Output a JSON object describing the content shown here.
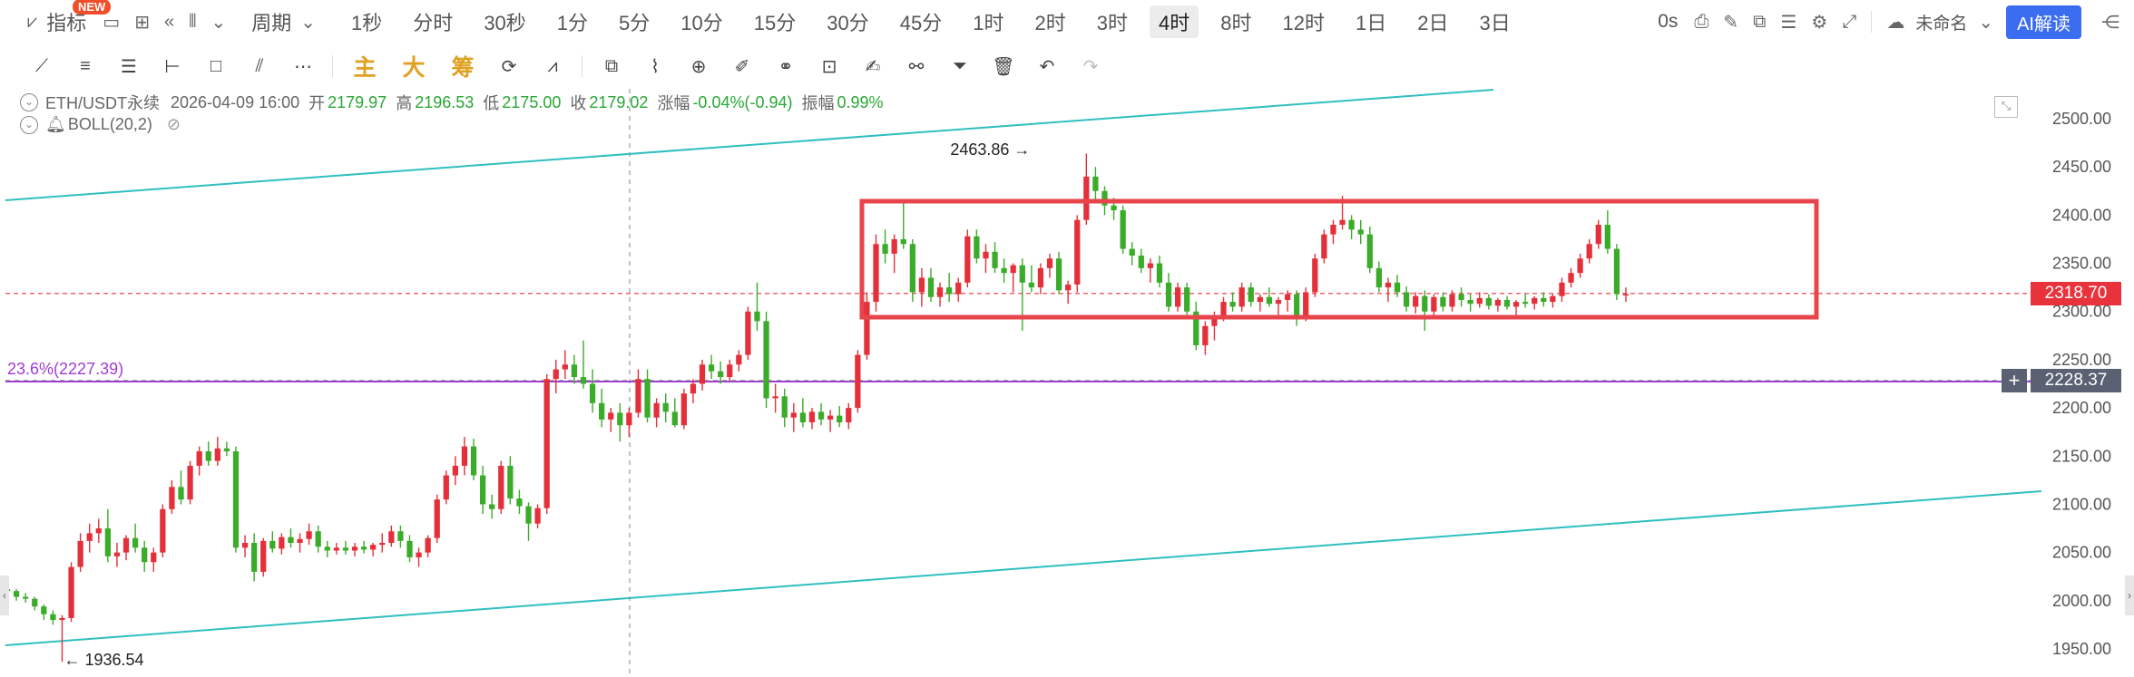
{
  "toolbar": {
    "indicator_label": "指标",
    "new_badge": "NEW",
    "period_label": "周期",
    "timeframes": [
      "1秒",
      "分时",
      "30秒",
      "1分",
      "5分",
      "10分",
      "15分",
      "30分",
      "45分",
      "1时",
      "2时",
      "3时",
      "4时",
      "8时",
      "12时",
      "1日",
      "2日",
      "3日"
    ],
    "active_timeframe": "4时",
    "countdown": "0s",
    "unnamed_label": "未命名",
    "ai_label": "AI解读"
  },
  "draw_toolbar": {
    "main_label": "主",
    "big_label": "大",
    "chip_label": "筹"
  },
  "legend": {
    "symbol": "ETH/USDT永续",
    "datetime": "2026-04-09 16:00",
    "open_label": "开",
    "open": "2179.97",
    "high_label": "高",
    "high": "2196.53",
    "low_label": "低",
    "low": "2175.00",
    "close_label": "收",
    "close": "2179.02",
    "change_label": "涨幅",
    "change": "-0.04%(-0.94)",
    "amp_label": "振幅",
    "amp": "0.99%",
    "indicator": "BOLL(20,2)"
  },
  "chart_data": {
    "type": "candlestick",
    "y_axis_ticks": [
      "2500.00",
      "2450.00",
      "2400.00",
      "2350.00",
      "2300.00",
      "2250.00",
      "2200.00",
      "2150.00",
      "2100.00",
      "2050.00",
      "2000.00",
      "1950.00"
    ],
    "ylim": [
      1930,
      2520
    ],
    "current_price": "2318.70",
    "crosshair_price": "2228.37",
    "fib_level": "23.6%(2227.39)",
    "high_annotation": "2463.86",
    "low_annotation": "1936.54",
    "candles": [
      [
        2012,
        2014,
        2005,
        2010
      ],
      [
        2010,
        2012,
        2000,
        2004
      ],
      [
        2004,
        2008,
        1998,
        2002
      ],
      [
        2002,
        2004,
        1990,
        1994
      ],
      [
        1994,
        1996,
        1980,
        1986
      ],
      [
        1986,
        1990,
        1975,
        1980
      ],
      [
        1980,
        1985,
        1936.54,
        1982
      ],
      [
        1982,
        2040,
        1978,
        2035
      ],
      [
        2035,
        2070,
        2030,
        2062
      ],
      [
        2062,
        2080,
        2050,
        2070
      ],
      [
        2070,
        2085,
        2060,
        2075
      ],
      [
        2075,
        2095,
        2040,
        2046
      ],
      [
        2046,
        2060,
        2035,
        2050
      ],
      [
        2050,
        2068,
        2042,
        2065
      ],
      [
        2065,
        2080,
        2050,
        2055
      ],
      [
        2055,
        2062,
        2030,
        2040
      ],
      [
        2040,
        2055,
        2030,
        2050
      ],
      [
        2050,
        2100,
        2045,
        2095
      ],
      [
        2095,
        2125,
        2090,
        2118
      ],
      [
        2118,
        2135,
        2100,
        2105
      ],
      [
        2105,
        2145,
        2100,
        2140
      ],
      [
        2140,
        2160,
        2130,
        2155
      ],
      [
        2155,
        2165,
        2140,
        2145
      ],
      [
        2145,
        2170,
        2140,
        2158
      ],
      [
        2158,
        2165,
        2150,
        2155
      ],
      [
        2155,
        2160,
        2050,
        2055
      ],
      [
        2055,
        2068,
        2045,
        2060
      ],
      [
        2060,
        2070,
        2020,
        2030
      ],
      [
        2030,
        2065,
        2025,
        2062
      ],
      [
        2062,
        2072,
        2050,
        2054
      ],
      [
        2054,
        2070,
        2048,
        2066
      ],
      [
        2066,
        2075,
        2055,
        2060
      ],
      [
        2060,
        2070,
        2050,
        2064
      ],
      [
        2064,
        2080,
        2058,
        2072
      ],
      [
        2072,
        2078,
        2050,
        2056
      ],
      [
        2056,
        2062,
        2045,
        2052
      ],
      [
        2052,
        2060,
        2048,
        2055
      ],
      [
        2055,
        2062,
        2048,
        2052
      ],
      [
        2052,
        2060,
        2046,
        2056
      ],
      [
        2056,
        2062,
        2049,
        2053
      ],
      [
        2053,
        2060,
        2046,
        2058
      ],
      [
        2058,
        2070,
        2050,
        2060
      ],
      [
        2060,
        2078,
        2056,
        2072
      ],
      [
        2072,
        2078,
        2055,
        2062
      ],
      [
        2062,
        2068,
        2040,
        2045
      ],
      [
        2045,
        2055,
        2035,
        2050
      ],
      [
        2050,
        2068,
        2045,
        2065
      ],
      [
        2065,
        2110,
        2060,
        2105
      ],
      [
        2105,
        2135,
        2100,
        2130
      ],
      [
        2130,
        2150,
        2120,
        2140
      ],
      [
        2140,
        2170,
        2130,
        2160
      ],
      [
        2160,
        2168,
        2125,
        2130
      ],
      [
        2130,
        2140,
        2090,
        2100
      ],
      [
        2100,
        2110,
        2085,
        2095
      ],
      [
        2095,
        2145,
        2090,
        2140
      ],
      [
        2140,
        2150,
        2100,
        2106
      ],
      [
        2106,
        2115,
        2090,
        2098
      ],
      [
        2098,
        2102,
        2062,
        2080
      ],
      [
        2080,
        2100,
        2075,
        2096
      ],
      [
        2096,
        2235,
        2090,
        2230
      ],
      [
        2230,
        2250,
        2215,
        2240
      ],
      [
        2240,
        2260,
        2230,
        2245
      ],
      [
        2245,
        2255,
        2225,
        2232
      ],
      [
        2232,
        2270,
        2220,
        2225
      ],
      [
        2225,
        2240,
        2195,
        2205
      ],
      [
        2205,
        2220,
        2180,
        2188
      ],
      [
        2188,
        2200,
        2175,
        2195
      ],
      [
        2195,
        2205,
        2165,
        2182
      ],
      [
        2182,
        2200,
        2170,
        2195
      ],
      [
        2195,
        2240,
        2190,
        2230
      ],
      [
        2230,
        2240,
        2185,
        2190
      ],
      [
        2190,
        2210,
        2180,
        2205
      ],
      [
        2205,
        2215,
        2185,
        2196
      ],
      [
        2196,
        2210,
        2180,
        2182
      ],
      [
        2182,
        2220,
        2178,
        2215
      ],
      [
        2215,
        2230,
        2205,
        2225
      ],
      [
        2225,
        2250,
        2218,
        2245
      ],
      [
        2245,
        2255,
        2230,
        2238
      ],
      [
        2238,
        2248,
        2225,
        2232
      ],
      [
        2232,
        2250,
        2228,
        2245
      ],
      [
        2245,
        2260,
        2238,
        2255
      ],
      [
        2255,
        2305,
        2250,
        2300
      ],
      [
        2300,
        2330,
        2280,
        2290
      ],
      [
        2290,
        2300,
        2200,
        2210
      ],
      [
        2210,
        2225,
        2195,
        2212
      ],
      [
        2212,
        2220,
        2180,
        2190
      ],
      [
        2190,
        2205,
        2175,
        2195
      ],
      [
        2195,
        2210,
        2180,
        2185
      ],
      [
        2185,
        2200,
        2178,
        2196
      ],
      [
        2196,
        2205,
        2182,
        2188
      ],
      [
        2188,
        2198,
        2175,
        2192
      ],
      [
        2192,
        2202,
        2180,
        2185
      ],
      [
        2185,
        2205,
        2178,
        2200
      ],
      [
        2200,
        2260,
        2195,
        2255
      ],
      [
        2255,
        2320,
        2250,
        2310
      ],
      [
        2310,
        2380,
        2300,
        2370
      ],
      [
        2370,
        2385,
        2350,
        2360
      ],
      [
        2360,
        2380,
        2340,
        2375
      ],
      [
        2375,
        2415,
        2365,
        2370
      ],
      [
        2370,
        2375,
        2310,
        2320
      ],
      [
        2320,
        2345,
        2305,
        2335
      ],
      [
        2335,
        2345,
        2310,
        2315
      ],
      [
        2315,
        2330,
        2305,
        2325
      ],
      [
        2325,
        2340,
        2310,
        2318
      ],
      [
        2318,
        2335,
        2310,
        2330
      ],
      [
        2330,
        2385,
        2325,
        2378
      ],
      [
        2378,
        2385,
        2350,
        2355
      ],
      [
        2355,
        2370,
        2340,
        2362
      ],
      [
        2362,
        2372,
        2340,
        2345
      ],
      [
        2345,
        2355,
        2330,
        2340
      ],
      [
        2340,
        2350,
        2320,
        2348
      ],
      [
        2348,
        2355,
        2280,
        2330
      ],
      [
        2330,
        2348,
        2320,
        2325
      ],
      [
        2325,
        2350,
        2318,
        2345
      ],
      [
        2345,
        2360,
        2335,
        2355
      ],
      [
        2355,
        2362,
        2318,
        2322
      ],
      [
        2322,
        2332,
        2308,
        2328
      ],
      [
        2328,
        2400,
        2320,
        2395
      ],
      [
        2395,
        2463.86,
        2390,
        2440
      ],
      [
        2440,
        2450,
        2415,
        2425
      ],
      [
        2425,
        2430,
        2400,
        2410
      ],
      [
        2410,
        2418,
        2395,
        2405
      ],
      [
        2405,
        2410,
        2360,
        2365
      ],
      [
        2365,
        2372,
        2348,
        2358
      ],
      [
        2358,
        2365,
        2340,
        2345
      ],
      [
        2345,
        2355,
        2330,
        2350
      ],
      [
        2350,
        2358,
        2325,
        2330
      ],
      [
        2330,
        2340,
        2300,
        2305
      ],
      [
        2305,
        2330,
        2300,
        2325
      ],
      [
        2325,
        2330,
        2295,
        2300
      ],
      [
        2300,
        2310,
        2260,
        2265
      ],
      [
        2265,
        2290,
        2255,
        2285
      ],
      [
        2285,
        2300,
        2270,
        2295
      ],
      [
        2295,
        2315,
        2290,
        2310
      ],
      [
        2310,
        2320,
        2300,
        2305
      ],
      [
        2305,
        2330,
        2300,
        2325
      ],
      [
        2325,
        2330,
        2305,
        2310
      ],
      [
        2310,
        2318,
        2300,
        2315
      ],
      [
        2315,
        2325,
        2305,
        2308
      ],
      [
        2308,
        2315,
        2295,
        2312
      ],
      [
        2312,
        2322,
        2300,
        2318
      ],
      [
        2318,
        2322,
        2285,
        2295
      ],
      [
        2295,
        2325,
        2290,
        2320
      ],
      [
        2320,
        2360,
        2315,
        2355
      ],
      [
        2355,
        2385,
        2350,
        2380
      ],
      [
        2380,
        2395,
        2370,
        2390
      ],
      [
        2390,
        2420,
        2385,
        2395
      ],
      [
        2395,
        2400,
        2375,
        2385
      ],
      [
        2385,
        2395,
        2370,
        2380
      ],
      [
        2380,
        2388,
        2340,
        2345
      ],
      [
        2345,
        2352,
        2320,
        2325
      ],
      [
        2325,
        2335,
        2310,
        2330
      ],
      [
        2330,
        2338,
        2315,
        2320
      ],
      [
        2320,
        2326,
        2300,
        2305
      ],
      [
        2305,
        2320,
        2298,
        2316
      ],
      [
        2316,
        2322,
        2280,
        2300
      ],
      [
        2300,
        2318,
        2295,
        2315
      ],
      [
        2315,
        2320,
        2300,
        2305
      ],
      [
        2305,
        2322,
        2300,
        2318
      ],
      [
        2318,
        2325,
        2305,
        2312
      ],
      [
        2312,
        2318,
        2300,
        2308
      ],
      [
        2308,
        2320,
        2304,
        2314
      ],
      [
        2314,
        2318,
        2302,
        2306
      ],
      [
        2306,
        2314,
        2300,
        2312
      ],
      [
        2312,
        2316,
        2302,
        2305
      ],
      [
        2305,
        2312,
        2295,
        2310
      ],
      [
        2310,
        2318,
        2304,
        2308
      ],
      [
        2308,
        2316,
        2302,
        2314
      ],
      [
        2314,
        2320,
        2305,
        2310
      ],
      [
        2310,
        2318,
        2304,
        2316
      ],
      [
        2316,
        2335,
        2310,
        2330
      ],
      [
        2330,
        2345,
        2325,
        2340
      ],
      [
        2340,
        2360,
        2335,
        2355
      ],
      [
        2355,
        2375,
        2350,
        2370
      ],
      [
        2370,
        2395,
        2365,
        2390
      ],
      [
        2390,
        2405,
        2360,
        2365
      ],
      [
        2365,
        2370,
        2312,
        2318
      ],
      [
        2318,
        2325,
        2310,
        2318
      ]
    ]
  }
}
